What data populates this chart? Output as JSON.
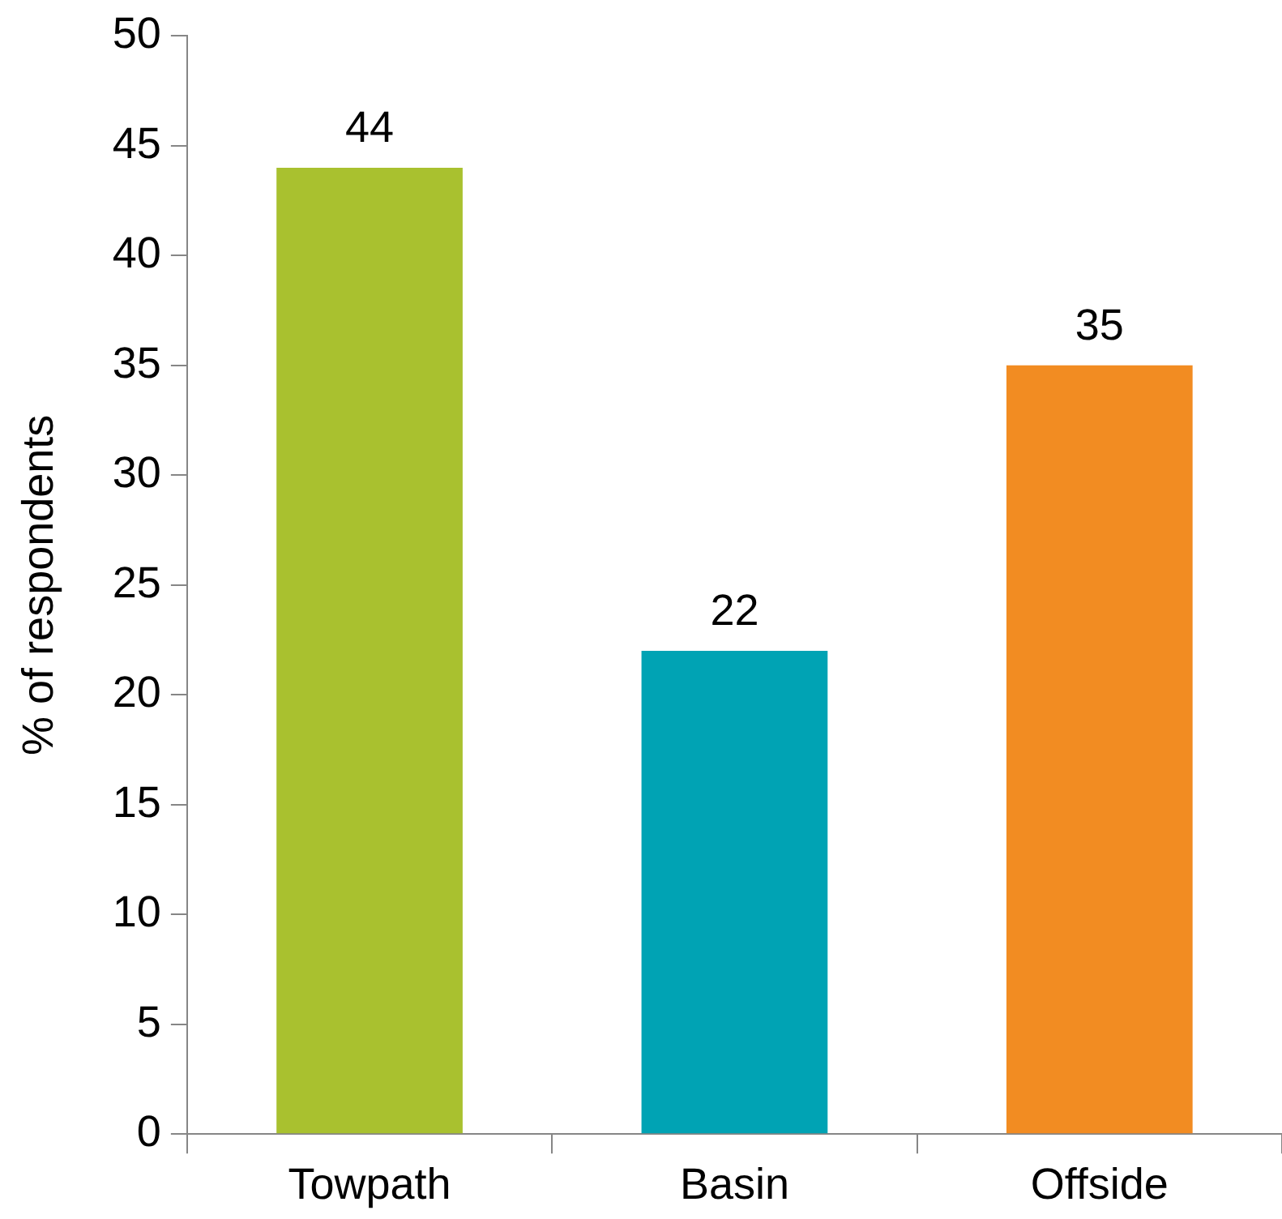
{
  "chart_data": {
    "type": "bar",
    "ylabel": "% of respondents",
    "categories": [
      "Towpath",
      "Basin",
      "Offside"
    ],
    "values": [
      44,
      22,
      35
    ],
    "colors": [
      "#a9c12f",
      "#00a3b4",
      "#f28c22"
    ],
    "ylim": [
      0,
      50
    ],
    "yticks": [
      0,
      5,
      10,
      15,
      20,
      25,
      30,
      35,
      40,
      45,
      50
    ],
    "grid": false,
    "legend": false,
    "data_labels": true
  }
}
